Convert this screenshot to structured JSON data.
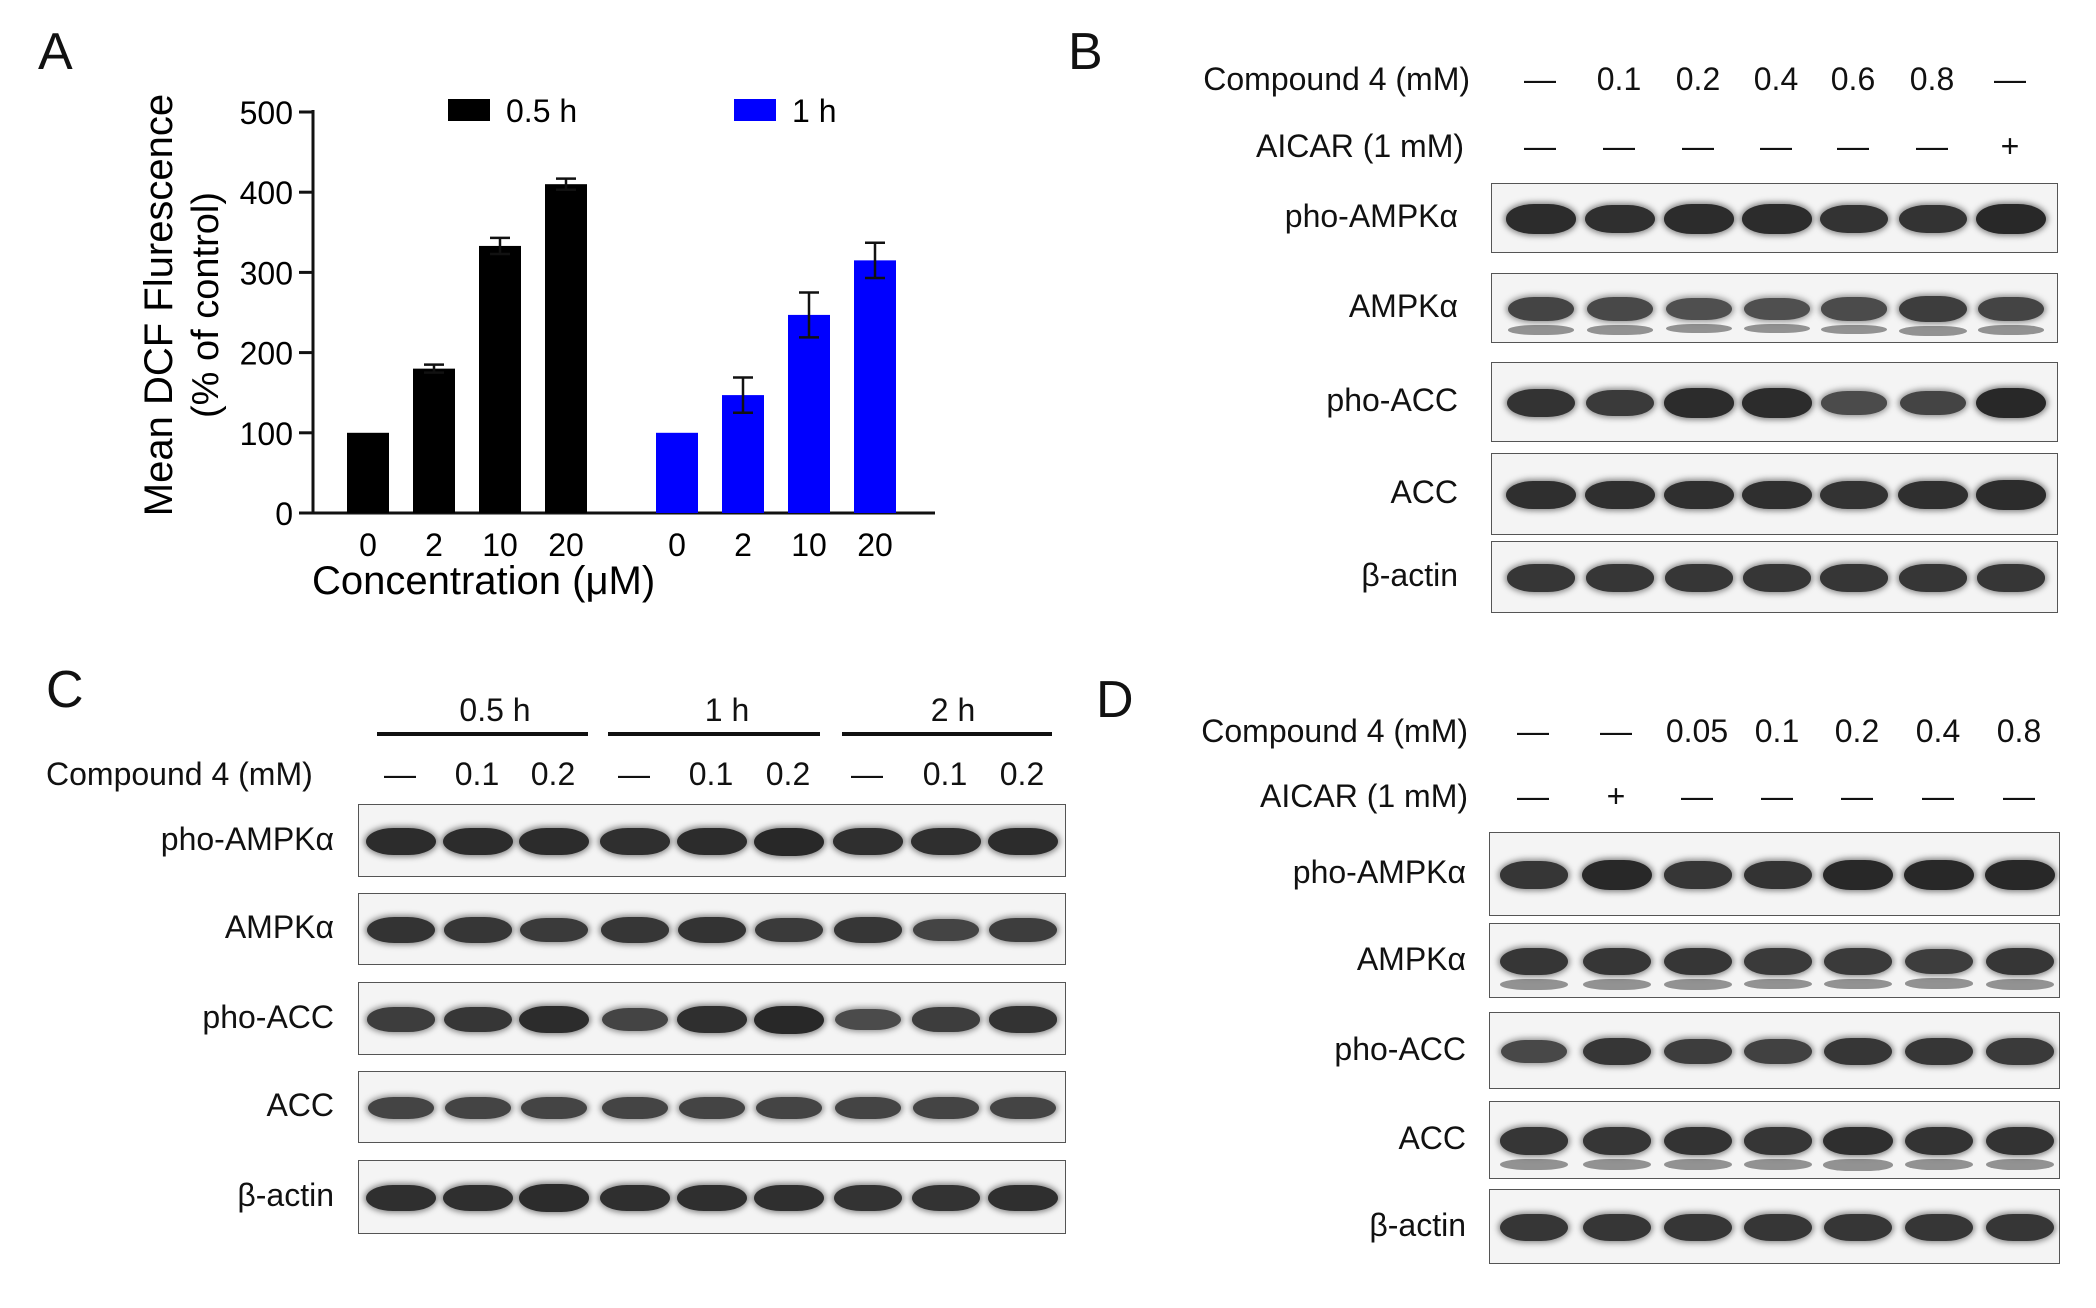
{
  "panels": {
    "a": "A",
    "b": "B",
    "c": "C",
    "d": "D"
  },
  "chart_data": {
    "type": "bar",
    "ylabel_line1": "Mean DCF Flurescence",
    "ylabel_line2": "(% of control)",
    "xlabel": "Concentration (μM)",
    "ylim": [
      0,
      500
    ],
    "yticks": [
      0,
      100,
      200,
      300,
      400,
      500
    ],
    "legend_position": "top",
    "series": [
      {
        "name": "0.5 h",
        "color": "#000000",
        "categories": [
          "0",
          "2",
          "10",
          "20"
        ],
        "values": [
          100,
          180,
          333,
          410
        ],
        "errors": [
          0,
          5,
          10,
          7
        ]
      },
      {
        "name": "1 h",
        "color": "#0000ff",
        "categories": [
          "0",
          "2",
          "10",
          "20"
        ],
        "values": [
          100,
          147,
          247,
          315
        ],
        "errors": [
          0,
          22,
          28,
          22
        ]
      }
    ]
  },
  "panel_b": {
    "row_labels": [
      "Compound 4 (mM)",
      "AICAR (1 mM)"
    ],
    "compound": [
      "—",
      "0.1",
      "0.2",
      "0.4",
      "0.6",
      "0.8",
      "—"
    ],
    "aicar": [
      "—",
      "—",
      "—",
      "—",
      "—",
      "—",
      "+"
    ],
    "blots": [
      "pho-AMPKα",
      "AMPKα",
      "pho-ACC",
      "ACC",
      "β-actin"
    ]
  },
  "panel_c": {
    "groups": [
      "0.5 h",
      "1 h",
      "2 h"
    ],
    "row_label": "Compound 4 (mM)",
    "compound": [
      "—",
      "0.1",
      "0.2",
      "—",
      "0.1",
      "0.2",
      "—",
      "0.1",
      "0.2"
    ],
    "blots": [
      "pho-AMPKα",
      "AMPKα",
      "pho-ACC",
      "ACC",
      "β-actin"
    ]
  },
  "panel_d": {
    "row_labels": [
      "Compound 4 (mM)",
      "AICAR (1 mM)"
    ],
    "compound": [
      "—",
      "—",
      "0.05",
      "0.1",
      "0.2",
      "0.4",
      "0.8"
    ],
    "aicar": [
      "—",
      "+",
      "—",
      "—",
      "—",
      "—",
      "—"
    ],
    "blots": [
      "pho-AMPKα",
      "AMPKα",
      "pho-ACC",
      "ACC",
      "β-actin"
    ]
  }
}
